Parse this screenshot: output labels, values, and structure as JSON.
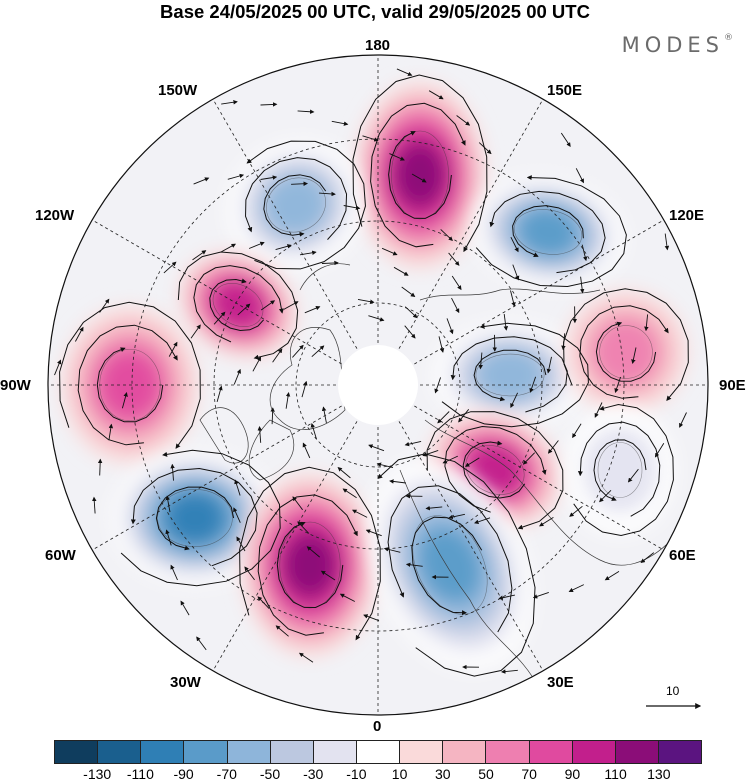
{
  "title": "Base 24/05/2025 00 UTC, valid 29/05/2025 00 UTC",
  "brand": "MODES",
  "brand_mark": "®",
  "map": {
    "projection": "north polar stereographic",
    "longitude_labels": {
      "top": "180",
      "top_right": "150E",
      "upper_right": "120E",
      "right": "90E",
      "lower_right": "60E",
      "bottom_right": "30E",
      "bottom": "0",
      "bottom_left": "30W",
      "lower_left": "60W",
      "left": "90W",
      "upper_left": "120W",
      "top_left": "150W"
    },
    "reference_vector_label": "10",
    "anomaly_centers": [
      {
        "name": "east-siberia-positive",
        "sign": "positive",
        "level": 110
      },
      {
        "name": "north-pacific-negative",
        "sign": "negative",
        "level": -70
      },
      {
        "name": "okhotsk-negative",
        "sign": "negative",
        "level": -90
      },
      {
        "name": "alaska-positive",
        "sign": "positive",
        "level": 90
      },
      {
        "name": "central-siberia-negative",
        "sign": "negative",
        "level": -70
      },
      {
        "name": "mongolia-positive",
        "sign": "positive",
        "level": 50
      },
      {
        "name": "canada-positive",
        "sign": "positive",
        "level": 70
      },
      {
        "name": "ural-positive",
        "sign": "positive",
        "level": 90
      },
      {
        "name": "central-asia-negative",
        "sign": "negative",
        "level": -30
      },
      {
        "name": "north-atlantic-negative",
        "sign": "negative",
        "level": -110
      },
      {
        "name": "iceland-positive",
        "sign": "positive",
        "level": 110
      },
      {
        "name": "scandinavia-negative",
        "sign": "negative",
        "level": -90
      }
    ]
  },
  "colorbar": {
    "ticks": [
      "-130",
      "-110",
      "-90",
      "-70",
      "-50",
      "-30",
      "-10",
      "10",
      "30",
      "50",
      "70",
      "90",
      "110",
      "130"
    ],
    "colors": [
      "#0f3d5e",
      "#1a5f8e",
      "#2f7fb5",
      "#5a9bc9",
      "#8eb5da",
      "#bcc8e0",
      "#e3e3f0",
      "#ffffff",
      "#fadada",
      "#f5b5c2",
      "#ee7fb0",
      "#e04a9f",
      "#c21f8c",
      "#8b0d78",
      "#5b1480"
    ]
  }
}
